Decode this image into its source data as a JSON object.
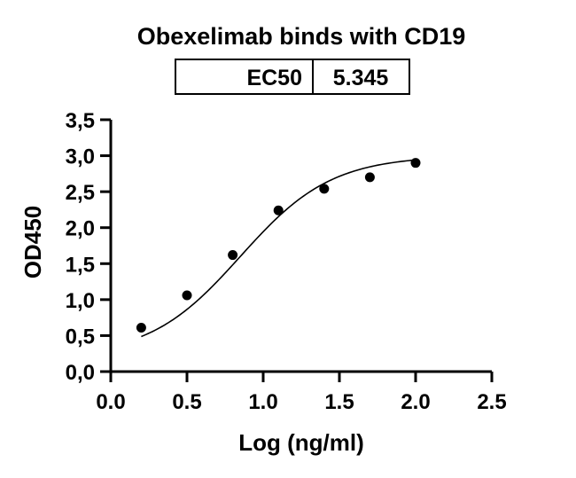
{
  "chart_data": {
    "type": "scatter",
    "title": "Obexelimab binds with CD19",
    "xlabel": "Log (ng/ml)",
    "ylabel": "OD450",
    "xlim": [
      0,
      2.5
    ],
    "ylim": [
      0,
      3.5
    ],
    "x_ticks": [
      "0.0",
      "0.5",
      "1.0",
      "1.5",
      "2.0",
      "2.5"
    ],
    "y_ticks": [
      "0,0",
      "0,5",
      "1,0",
      "1,5",
      "2,0",
      "2,5",
      "3,0",
      "3,5"
    ],
    "grid": false,
    "fit": "sigmoidal curve",
    "series": [
      {
        "x": [
          0.2,
          0.5,
          0.8,
          1.1,
          1.4,
          1.7,
          2.0
        ],
        "y": [
          0.61,
          1.06,
          1.62,
          2.24,
          2.54,
          2.7,
          2.9
        ]
      }
    ],
    "ec50_table": {
      "label": "EC50",
      "value": "5.345"
    }
  }
}
